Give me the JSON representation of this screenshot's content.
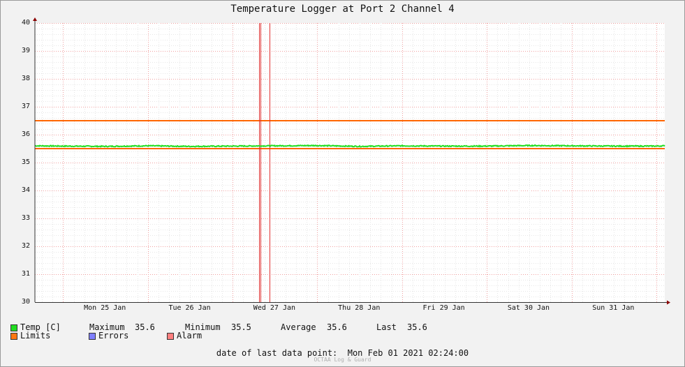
{
  "chart_data": {
    "type": "line",
    "title": "Temperature Logger at Port 2 Channel 4",
    "ylim": [
      30,
      40
    ],
    "yticks": [
      "30",
      "31",
      "32",
      "33",
      "34",
      "35",
      "36",
      "37",
      "38",
      "39",
      "40"
    ],
    "x_range": [
      "2021-01-24 16:00",
      "2021-02-01 02:24"
    ],
    "xtick_labels": [
      "Mon 25 Jan",
      "Tue 26 Jan",
      "Wed 27 Jan",
      "Thu 28 Jan",
      "Fri 29 Jan",
      "Sat 30 Jan",
      "Sun 31 Jan"
    ],
    "xtick_dates": [
      "2021-01-25 12:00",
      "2021-01-26 12:00",
      "2021-01-27 12:00",
      "2021-01-28 12:00",
      "2021-01-29 12:00",
      "2021-01-30 12:00",
      "2021-01-31 12:00"
    ],
    "grid": true,
    "series": [
      {
        "name": "Temp [C]",
        "color": "#22dd22",
        "x": [
          "2021-01-24 16:00",
          "2021-01-25 00:00",
          "2021-01-25 12:00",
          "2021-01-26 00:00",
          "2021-01-26 12:00",
          "2021-01-27 00:00",
          "2021-01-27 12:00",
          "2021-01-28 00:00",
          "2021-01-28 12:00",
          "2021-01-29 00:00",
          "2021-01-29 12:00",
          "2021-01-30 00:00",
          "2021-01-30 12:00",
          "2021-01-31 00:00",
          "2021-01-31 12:00",
          "2021-02-01 00:00",
          "2021-02-01 02:24"
        ],
        "y": [
          35.6,
          35.59,
          35.58,
          35.6,
          35.58,
          35.59,
          35.6,
          35.61,
          35.58,
          35.6,
          35.59,
          35.59,
          35.61,
          35.6,
          35.59,
          35.59,
          35.6
        ]
      },
      {
        "name": "Limits",
        "color": "#ff6600",
        "lines": [
          36.5,
          35.5
        ]
      }
    ],
    "alarm_color": "#e03030",
    "alarm_markers": [
      "2021-01-27 07:30",
      "2021-01-27 07:48",
      "2021-01-27 10:30"
    ]
  },
  "legend": {
    "temp_label": "Temp [C]",
    "max_label": "Maximum",
    "max_value": "35.6",
    "min_label": "Minimum",
    "min_value": "35.5",
    "avg_label": "Average",
    "avg_value": "35.6",
    "last_label": "Last",
    "last_value": "35.6",
    "limits_label": "Limits",
    "errors_label": "Errors",
    "alarm_label": "Alarm",
    "temp_color": "#22dd22",
    "limits_color": "#ff7711",
    "errors_color": "#7f7fff",
    "alarm_color": "#ff7f7f"
  },
  "footer": {
    "text": "date of last data point:  Mon Feb 01 2021 02:24:00",
    "credit": "OCTAA Log & Guard"
  }
}
